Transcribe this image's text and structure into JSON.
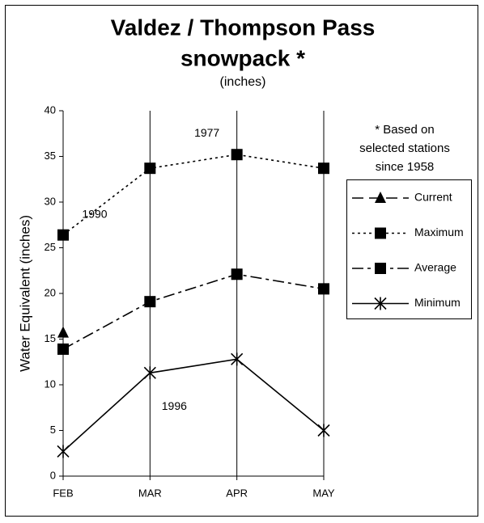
{
  "chart_data": {
    "type": "line",
    "title": [
      "Valdez / Thompson Pass",
      "snowpack *"
    ],
    "subtitle": "(inches)",
    "y_label": "Water Equivalent (inches)",
    "note": [
      "* Based on",
      "selected stations",
      "since 1958"
    ],
    "annotations": [
      {
        "text": "1990",
        "series": 1,
        "index": 0
      },
      {
        "text": "1977",
        "series": 1,
        "index": 2
      },
      {
        "text": "1996",
        "series": 3,
        "index": 1
      }
    ],
    "categories": [
      "FEB",
      "MAR",
      "APR",
      "MAY"
    ],
    "series": [
      {
        "name": "Current",
        "color": "#000000",
        "dash": "14,7",
        "marker": "triangle",
        "values": [
          15.7,
          null,
          null,
          null
        ]
      },
      {
        "name": "Maximum",
        "color": "#000000",
        "dash": "3,4",
        "marker": "square",
        "values": [
          26.4,
          33.7,
          35.2,
          33.7
        ]
      },
      {
        "name": "Average",
        "color": "#000000",
        "dash": "14,5,4,5",
        "marker": "square",
        "values": [
          13.9,
          19.1,
          22.1,
          20.5
        ]
      },
      {
        "name": "Minimum",
        "color": "#000000",
        "dash": "none",
        "marker": "star",
        "values": [
          2.7,
          11.3,
          12.8,
          5.0
        ]
      }
    ],
    "ylim": [
      0,
      40
    ],
    "yticks": [
      0,
      5,
      10,
      15,
      20,
      25,
      30,
      35,
      40
    ],
    "grid": true
  }
}
